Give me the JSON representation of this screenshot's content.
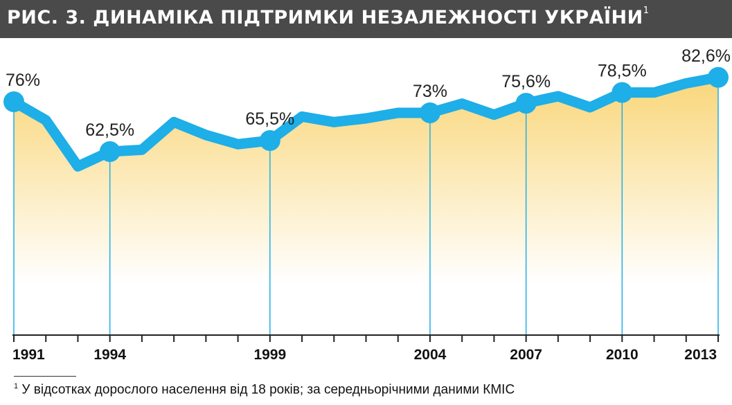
{
  "title": {
    "prefix": "РИС. 3. ДИНАМІКА ПІДТРИМКИ НЕЗАЛЕЖНОСТІ УКРАЇНИ",
    "marker": "1"
  },
  "footnote": {
    "marker": "1",
    "text": "У відсотках дорослого населення від 18 років; за середньорічними даними КМІС"
  },
  "colors": {
    "line": "#1eaee8",
    "fill_top": "#f9d679",
    "fill_bottom": "#ffffff",
    "title_bg": "#4a4a4a",
    "guide": "#1eaee8",
    "axis": "#222222"
  },
  "chart_data": {
    "type": "area",
    "title": "РИС. 3. ДИНАМІКА ПІДТРИМКИ НЕЗАЛЕЖНОСТІ УКРАЇНИ",
    "xlabel": "",
    "ylabel": "",
    "x": [
      1991,
      1992,
      1993,
      1994,
      1995,
      1996,
      1997,
      1998,
      1999,
      2000,
      2001,
      2002,
      2003,
      2004,
      2005,
      2006,
      2007,
      2008,
      2009,
      2010,
      2011,
      2012,
      2013
    ],
    "series": [
      {
        "values": [
          76,
          71,
          58.5,
          62.5,
          63,
          70.5,
          67,
          64.5,
          65.5,
          72,
          70.5,
          71.5,
          73,
          73,
          75.5,
          72.5,
          75.6,
          77.5,
          74.5,
          78.5,
          78.5,
          81,
          82.6
        ]
      }
    ],
    "labeled_points": [
      {
        "x": 1991,
        "label": "76%"
      },
      {
        "x": 1994,
        "label": "62,5%"
      },
      {
        "x": 1999,
        "label": "65,5%"
      },
      {
        "x": 2004,
        "label": "73%"
      },
      {
        "x": 2007,
        "label": "75,6%"
      },
      {
        "x": 2010,
        "label": "78,5%"
      },
      {
        "x": 2013,
        "label": "82,6%"
      }
    ],
    "tick_labels": [
      "1991",
      "1994",
      "1999",
      "2004",
      "2007",
      "2010",
      "2013"
    ],
    "ylim": [
      0,
      100
    ],
    "grid": false,
    "legend": "none"
  }
}
